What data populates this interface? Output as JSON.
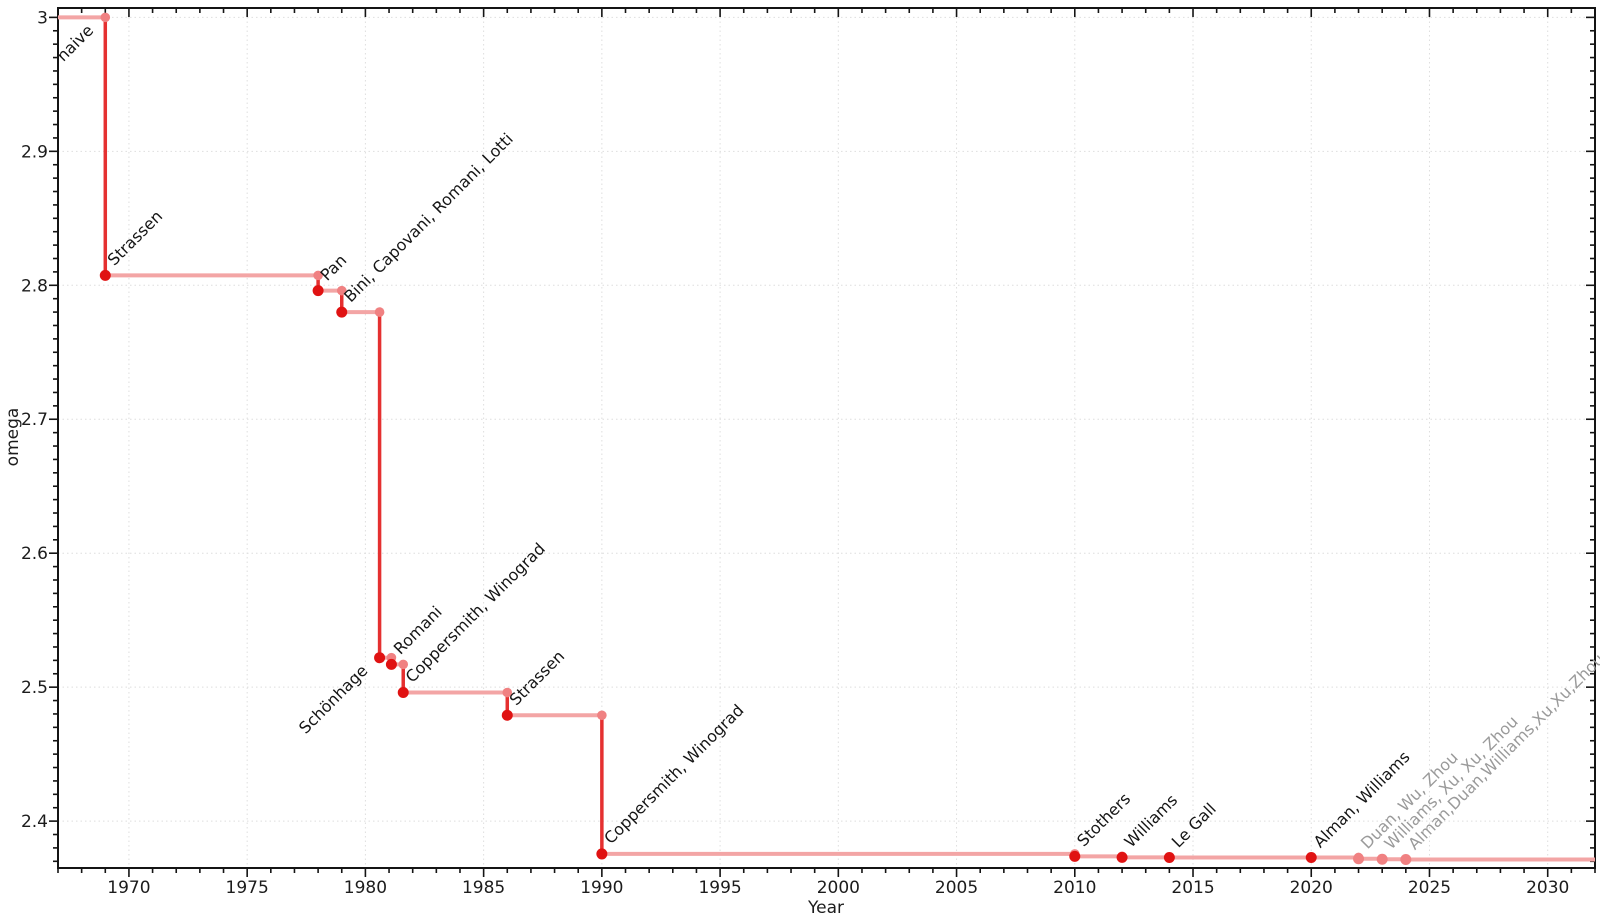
{
  "chart_data": {
    "type": "line",
    "subtype": "step-post",
    "title": "",
    "xlabel": "Year",
    "ylabel": "omega",
    "xlim": [
      1967,
      2032
    ],
    "ylim": [
      2.365,
      3.007
    ],
    "grid": "dotted, major ticks only",
    "legend": "none",
    "baseline_omega": 3.0,
    "x_ticks": [
      {
        "value": 1970,
        "label": "1970"
      },
      {
        "value": 1975,
        "label": "1975"
      },
      {
        "value": 1980,
        "label": "1980"
      },
      {
        "value": 1985,
        "label": "1985"
      },
      {
        "value": 1990,
        "label": "1990"
      },
      {
        "value": 1995,
        "label": "1995"
      },
      {
        "value": 2000,
        "label": "2000"
      },
      {
        "value": 2005,
        "label": "2005"
      },
      {
        "value": 2010,
        "label": "2010"
      },
      {
        "value": 2015,
        "label": "2015"
      },
      {
        "value": 2020,
        "label": "2020"
      },
      {
        "value": 2025,
        "label": "2025"
      },
      {
        "value": 2030,
        "label": "2030"
      }
    ],
    "y_ticks": [
      {
        "value": 2.4,
        "label": "2.4"
      },
      {
        "value": 2.5,
        "label": "2.5"
      },
      {
        "value": 2.6,
        "label": "2.6"
      },
      {
        "value": 2.7,
        "label": "2.7"
      },
      {
        "value": 2.8,
        "label": "2.8"
      },
      {
        "value": 2.9,
        "label": "2.9"
      },
      {
        "value": 3.0,
        "label": "3"
      }
    ],
    "x_minor_step": 1,
    "y_minor_step": 0.01,
    "points": [
      {
        "label": "naive",
        "year": 1969,
        "omega": 3.0,
        "baseline": true,
        "placement": "below_left",
        "faded": false
      },
      {
        "label": "Strassen",
        "year": 1969,
        "omega": 2.8074,
        "baseline": false,
        "placement": "above_right",
        "faded": false
      },
      {
        "label": "Pan",
        "year": 1978,
        "omega": 2.796,
        "baseline": false,
        "placement": "above_right",
        "faded": false
      },
      {
        "label": "Bini, Capovani, Romani, Lotti",
        "year": 1979,
        "omega": 2.78,
        "baseline": false,
        "placement": "above_right",
        "faded": false
      },
      {
        "label": "Schönhage",
        "year": 1980.6,
        "omega": 2.522,
        "baseline": false,
        "placement": "below_left",
        "faded": false
      },
      {
        "label": "Romani",
        "year": 1981.1,
        "omega": 2.517,
        "baseline": false,
        "placement": "above_right",
        "faded": false
      },
      {
        "label": "Coppersmith, Winograd",
        "year": 1981.6,
        "omega": 2.496,
        "baseline": false,
        "placement": "above_right",
        "faded": false
      },
      {
        "label": "Strassen",
        "year": 1986,
        "omega": 2.479,
        "baseline": false,
        "placement": "above_right",
        "faded": false
      },
      {
        "label": "Coppersmith, Winograd",
        "year": 1990,
        "omega": 2.3755,
        "baseline": false,
        "placement": "above_right",
        "faded": false
      },
      {
        "label": "Stothers",
        "year": 2010,
        "omega": 2.3737,
        "baseline": false,
        "placement": "above_right",
        "faded": false
      },
      {
        "label": "Williams",
        "year": 2012,
        "omega": 2.3729,
        "baseline": false,
        "placement": "above_right",
        "faded": false
      },
      {
        "label": "Le Gall",
        "year": 2014,
        "omega": 2.37286,
        "baseline": false,
        "placement": "above_right",
        "faded": false
      },
      {
        "label": "Alman, Williams",
        "year": 2020,
        "omega": 2.37286,
        "baseline": false,
        "placement": "above_right",
        "faded": false
      },
      {
        "label": "Duan, Wu, Zhou",
        "year": 2022,
        "omega": 2.37187,
        "baseline": false,
        "placement": "above_right",
        "faded": true
      },
      {
        "label": "Williams, Xu, Xu, Zhou",
        "year": 2023,
        "omega": 2.37155,
        "baseline": false,
        "placement": "above_right",
        "faded": true
      },
      {
        "label": "Alman,Duan,Williams,Xu,Xu,Zhou",
        "year": 2024,
        "omega": 2.37134,
        "baseline": false,
        "placement": "above_right",
        "faded": true
      }
    ],
    "colors": {
      "step_horizontal": "#f3a5a5",
      "step_vertical": "#e53030",
      "point": "#e01212",
      "corner_point": "#f08182",
      "faded_point": "#f08182",
      "label_text": "#151515",
      "faded_label_text": "#9a9a9a",
      "grid": "#dedede",
      "axis": "#141414"
    }
  }
}
